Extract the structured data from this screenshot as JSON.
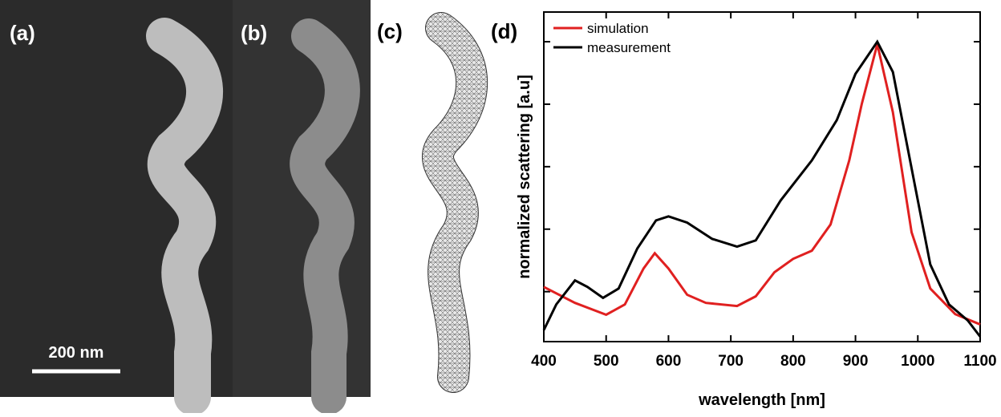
{
  "panels": {
    "labels": [
      "(a)",
      "(b)",
      "(c)",
      "(d)"
    ],
    "scale_bar": "200 nm"
  },
  "chart_data": {
    "type": "line",
    "xlabel": "wavelength [nm]",
    "ylabel": "normalized scattering [a.u]",
    "xlim": [
      400,
      1100
    ],
    "xticks": [
      400,
      500,
      600,
      700,
      800,
      900,
      1000,
      1100
    ],
    "ylim": [
      0.04,
      1.095
    ],
    "yticks": [
      0.2,
      0.4,
      0.6,
      0.8,
      1.0
    ],
    "legend": "upper left",
    "series": [
      {
        "name": "simulation",
        "color": "#e02020",
        "x": [
          400,
          450,
          500,
          530,
          560,
          578,
          600,
          630,
          660,
          710,
          740,
          770,
          800,
          830,
          860,
          890,
          910,
          935,
          960,
          990,
          1020,
          1060,
          1100
        ],
        "values": [
          0.215,
          0.164,
          0.126,
          0.159,
          0.274,
          0.323,
          0.274,
          0.19,
          0.164,
          0.154,
          0.185,
          0.262,
          0.305,
          0.331,
          0.415,
          0.62,
          0.8,
          0.992,
          0.774,
          0.39,
          0.21,
          0.128,
          0.095
        ]
      },
      {
        "name": "measurement",
        "color": "#000000",
        "x": [
          400,
          420,
          450,
          470,
          495,
          520,
          550,
          580,
          600,
          630,
          670,
          710,
          740,
          780,
          830,
          870,
          900,
          935,
          960,
          990,
          1020,
          1050,
          1080,
          1100
        ],
        "values": [
          0.077,
          0.159,
          0.236,
          0.215,
          0.18,
          0.21,
          0.338,
          0.428,
          0.441,
          0.421,
          0.369,
          0.344,
          0.364,
          0.492,
          0.62,
          0.749,
          0.897,
          1.0,
          0.903,
          0.595,
          0.287,
          0.159,
          0.108,
          0.056
        ]
      }
    ]
  }
}
